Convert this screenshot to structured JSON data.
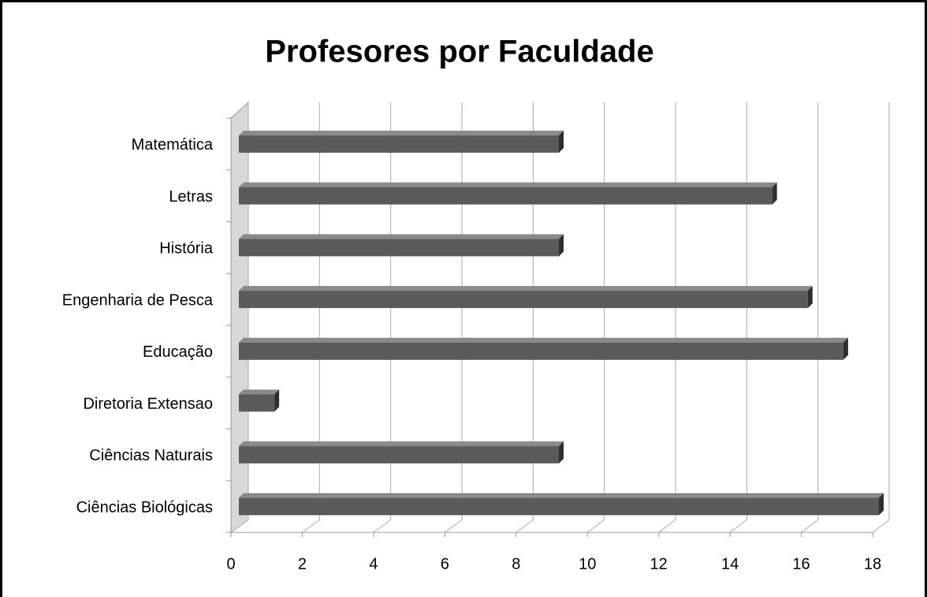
{
  "chart_data": {
    "type": "bar",
    "orientation": "horizontal",
    "title": "Profesores por Faculdade",
    "categories": [
      "Ciências Biológicas",
      "Ciências Naturais",
      "Diretoria Extensao",
      "Educação",
      "Engenharia de Pesca",
      "História",
      "Letras",
      "Matemática"
    ],
    "values": [
      18,
      9,
      1,
      17,
      16,
      9,
      15,
      9
    ],
    "color": "#5a5a5a",
    "xlim": [
      0,
      18
    ],
    "xticks": [
      0,
      2,
      4,
      6,
      8,
      10,
      12,
      14,
      16,
      18
    ],
    "grid": true
  }
}
